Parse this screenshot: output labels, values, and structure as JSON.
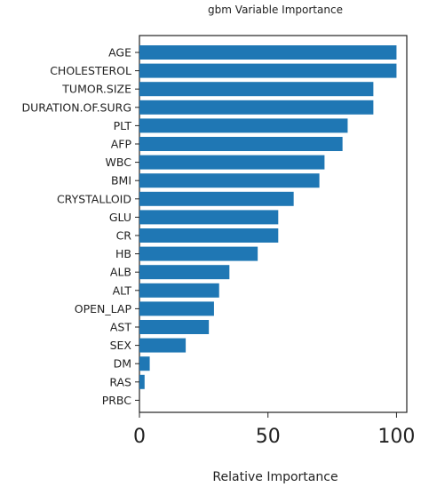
{
  "chart_data": {
    "type": "bar",
    "orientation": "horizontal",
    "title": "gbm Variable Importance",
    "xlabel": "Relative Importance",
    "ylabel": "",
    "xlim": [
      0,
      104
    ],
    "xticks": [
      0,
      50,
      100
    ],
    "grid": false,
    "legend": "none",
    "bar_color": "#1f77b4",
    "categories": [
      "AGE",
      "CHOLESTEROL",
      "TUMOR.SIZE",
      "DURATION.OF.SURG",
      "PLT",
      "AFP",
      "WBC",
      "BMI",
      "CRYSTALLOID",
      "GLU",
      "CR",
      "HB",
      "ALB",
      "ALT",
      "OPEN_LAP",
      "AST",
      "SEX",
      "DM",
      "RAS",
      "PRBC"
    ],
    "values": [
      100,
      100,
      91,
      91,
      81,
      79,
      72,
      70,
      60,
      54,
      54,
      46,
      35,
      31,
      29,
      27,
      18,
      4,
      2,
      0
    ]
  }
}
